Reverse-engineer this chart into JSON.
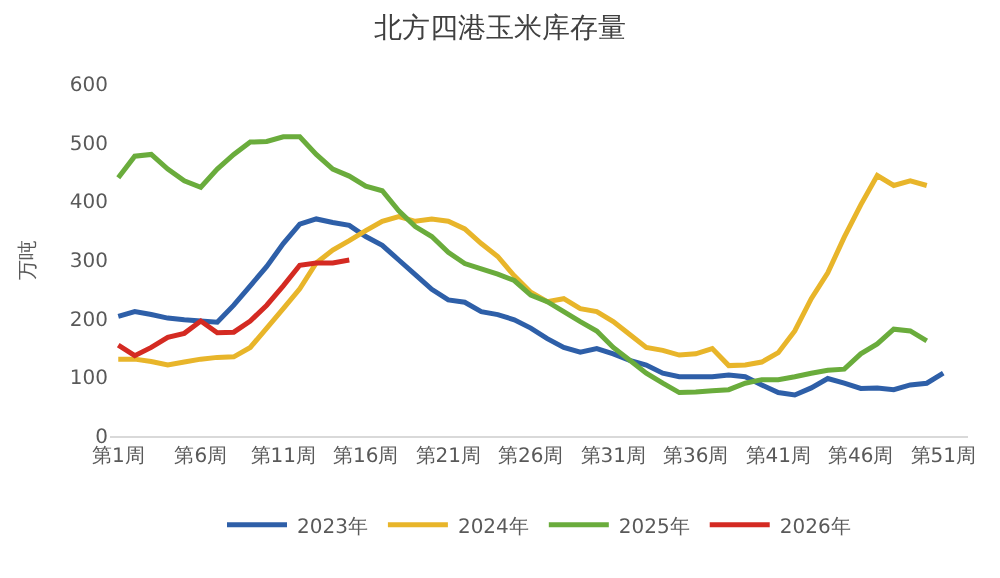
{
  "chart_data": {
    "type": "line",
    "title": "北方四港玉米库存量",
    "ylabel": "万吨",
    "categories": [
      "第1周",
      null,
      null,
      null,
      null,
      "第6周",
      null,
      null,
      null,
      null,
      "第11周",
      null,
      null,
      null,
      null,
      "第16周",
      null,
      null,
      null,
      null,
      "第21周",
      null,
      null,
      null,
      null,
      "第26周",
      null,
      null,
      null,
      null,
      "第31周",
      null,
      null,
      null,
      null,
      "第36周",
      null,
      null,
      null,
      null,
      "第41周",
      null,
      null,
      null,
      null,
      "第46周",
      null,
      null,
      null,
      null,
      "第51周",
      null
    ],
    "series": [
      {
        "name": "2023年",
        "color": "#2e5fa8",
        "values": [
          204,
          212,
          207,
          201,
          198,
          196,
          194,
          223,
          256,
          289,
          328,
          361,
          370,
          364,
          359,
          340,
          325,
          300,
          275,
          250,
          232,
          228,
          212,
          207,
          198,
          184,
          166,
          151,
          143,
          149,
          140,
          129,
          121,
          107,
          101,
          101,
          101,
          104,
          101,
          87,
          74,
          70,
          82,
          98,
          90,
          81,
          82,
          79,
          87,
          90,
          107,
          null
        ]
      },
      {
        "name": "2024年",
        "color": "#e8b52a",
        "values": [
          131,
          131,
          127,
          121,
          126,
          131,
          134,
          135,
          151,
          184,
          217,
          251,
          295,
          317,
          333,
          350,
          366,
          374,
          366,
          370,
          366,
          353,
          328,
          306,
          273,
          245,
          229,
          234,
          217,
          212,
          195,
          173,
          151,
          146,
          138,
          140,
          149,
          120,
          121,
          126,
          142,
          179,
          234,
          278,
          339,
          394,
          444,
          427,
          435,
          427,
          null,
          null
        ]
      },
      {
        "name": "2025年",
        "color": "#6aac3c",
        "values": [
          440,
          477,
          480,
          455,
          435,
          424,
          455,
          480,
          501,
          502,
          510,
          510,
          480,
          455,
          443,
          426,
          418,
          384,
          357,
          340,
          313,
          294,
          285,
          276,
          265,
          240,
          229,
          212,
          195,
          179,
          151,
          129,
          107,
          90,
          74,
          75,
          77,
          79,
          90,
          96,
          96,
          101,
          107,
          112,
          114,
          140,
          157,
          182,
          179,
          162,
          null,
          null
        ]
      },
      {
        "name": "2026年",
        "color": "#d42a22",
        "values": [
          155,
          137,
          151,
          168,
          175,
          196,
          176,
          177,
          196,
          223,
          256,
          291,
          295,
          295,
          300,
          null,
          null,
          null,
          null,
          null,
          null,
          null,
          null,
          null,
          null,
          null,
          null,
          null,
          null,
          null,
          null,
          null,
          null,
          null,
          null,
          null,
          null,
          null,
          null,
          null,
          null,
          null,
          null,
          null,
          null,
          null,
          null,
          null,
          null,
          null,
          null,
          null
        ]
      }
    ],
    "ylim": [
      0,
      600
    ],
    "yticks": [
      0,
      100,
      200,
      300,
      400,
      500,
      600
    ],
    "legend": "bottom",
    "marker": "none",
    "line_style": "solid"
  }
}
